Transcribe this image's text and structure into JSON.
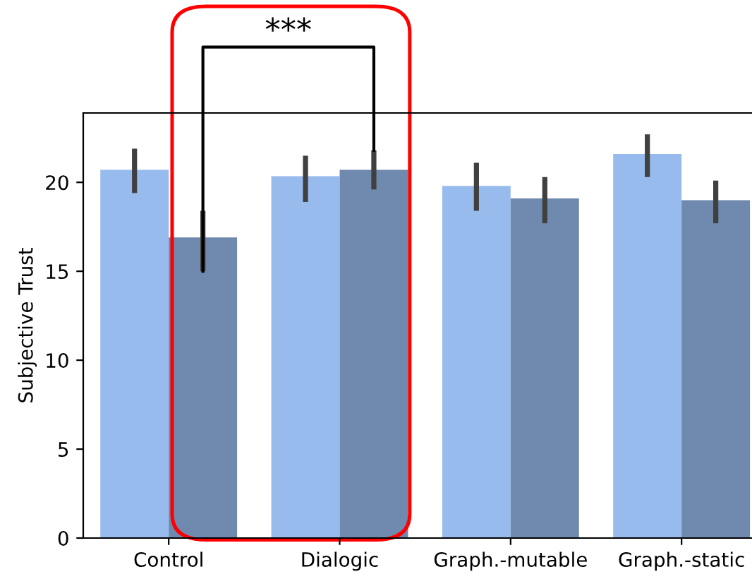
{
  "chart_data": {
    "type": "bar",
    "ylabel": "Subjective Trust",
    "categories": [
      "Control",
      "Dialogic",
      "Graph.-mutable",
      "Graph.-static"
    ],
    "series": [
      {
        "color": "#98bbee",
        "values": [
          20.7,
          20.35,
          19.8,
          21.6
        ],
        "errors": [
          [
            19.4,
            21.9
          ],
          [
            18.9,
            21.5
          ],
          [
            18.4,
            21.1
          ],
          [
            20.3,
            22.7
          ]
        ]
      },
      {
        "color": "#6f8aae",
        "values": [
          16.9,
          20.7,
          19.1,
          19.0
        ],
        "errors": [
          [
            15.0,
            18.4
          ],
          [
            19.6,
            21.8
          ],
          [
            17.7,
            20.3
          ],
          [
            17.7,
            20.1
          ]
        ]
      }
    ],
    "ylim": [
      0,
      23.9
    ],
    "yticks": [
      0,
      5,
      10,
      15,
      20
    ],
    "grid": false,
    "legend": false,
    "annotations": [
      "***"
    ]
  }
}
